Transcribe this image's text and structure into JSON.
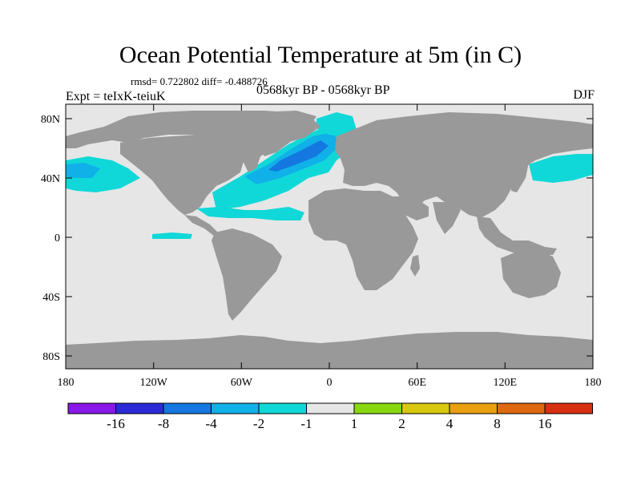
{
  "title": "Ocean Potential Temperature at 5m (in C)",
  "stats": "rmsd= 0.722802 diff= -0.488726",
  "experiment": "Expt = teIxK-teiuK",
  "period": "0568kyr BP - 0568kyr BP",
  "season": "DJF",
  "map": {
    "lon_labels": [
      "180",
      "120W",
      "60W",
      "0",
      "60E",
      "120E",
      "180"
    ],
    "lat_labels": [
      "80N",
      "40N",
      "0",
      "40S",
      "80S"
    ],
    "colors": {
      "land": "#999999",
      "ocean_neutral": "#e6e6e6",
      "anomaly_light": "#10d8d8",
      "anomaly_mid": "#10b0e8",
      "anomaly_strong": "#1478e0"
    }
  },
  "colorbar": {
    "labels": [
      "-16",
      "-8",
      "-4",
      "-2",
      "-1",
      "1",
      "2",
      "4",
      "8",
      "16"
    ],
    "colors": [
      "#8a18e8",
      "#2a2ad8",
      "#1478e0",
      "#10b0e8",
      "#10d8d8",
      "#e6e6e6",
      "#88d810",
      "#d8c810",
      "#e8a010",
      "#e06810",
      "#d83010"
    ]
  }
}
